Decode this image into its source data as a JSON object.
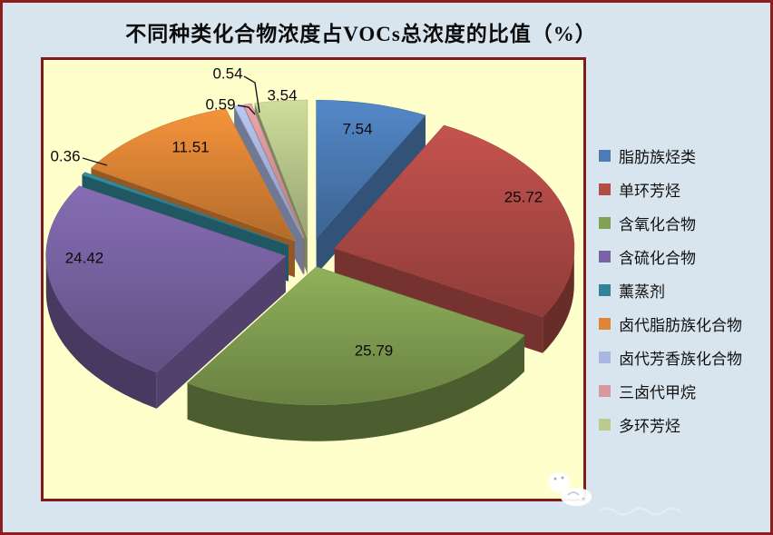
{
  "window": {
    "background_color": "#d9e5ee",
    "outer_border_color": "#8c1e1e",
    "watermark_icon": "white-sheep-sticker"
  },
  "chart": {
    "plot_background": "#ffffcc",
    "plot_border_color": "#7e1c1c"
  },
  "chart_data": {
    "type": "pie",
    "title": "不同种类化合物浓度占VOCs总浓度的比值（%）",
    "unit": "%",
    "effect": "3d-exploded",
    "start_angle_deg": -90,
    "clockwise": true,
    "labels": "value",
    "legend_position": "right",
    "categories": [
      "脂肪族烃类",
      "单环芳烃",
      "含氧化合物",
      "含硫化合物",
      "薰蒸剂",
      "卤代脂肪族化合物",
      "卤代芳香族化合物",
      "三卤代甲烷",
      "多环芳烃"
    ],
    "values": [
      7.54,
      25.72,
      25.79,
      24.42,
      0.36,
      11.51,
      0.59,
      0.54,
      3.54
    ],
    "colors": [
      "#4b7cb6",
      "#b34b47",
      "#83a152",
      "#7a63a4",
      "#2f8496",
      "#df8636",
      "#a9b8e0",
      "#d9989c",
      "#bcca8e"
    ]
  }
}
